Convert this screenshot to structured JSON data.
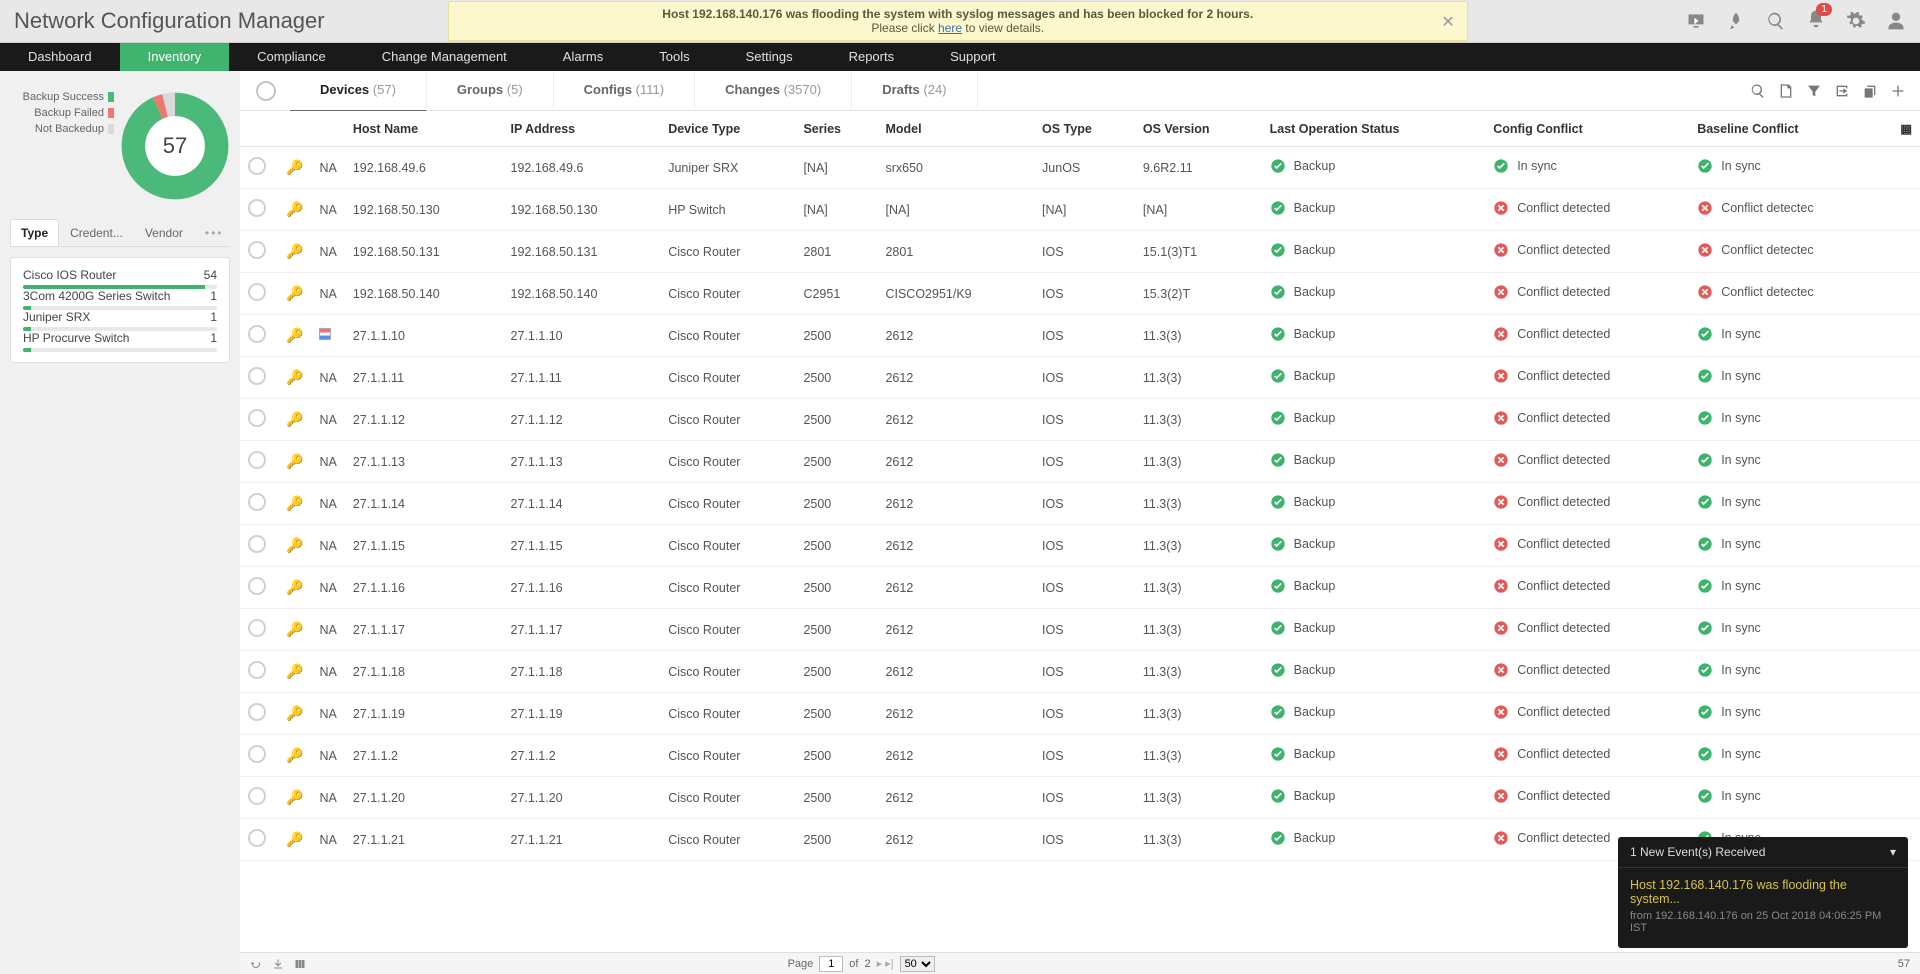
{
  "app_title": "Network Configuration Manager",
  "banner": {
    "line1_pre": "Host 192.168.140.176 was flooding the system with syslog messages and has been blocked for 2 hours.",
    "line2_pre": "Please click ",
    "link": "here",
    "line2_post": " to view details."
  },
  "topbar_badge": "1",
  "nav": [
    {
      "label": "Dashboard",
      "active": false
    },
    {
      "label": "Inventory",
      "active": true
    },
    {
      "label": "Compliance",
      "active": false
    },
    {
      "label": "Change Management",
      "active": false
    },
    {
      "label": "Alarms",
      "active": false
    },
    {
      "label": "Tools",
      "active": false
    },
    {
      "label": "Settings",
      "active": false
    },
    {
      "label": "Reports",
      "active": false
    },
    {
      "label": "Support",
      "active": false
    }
  ],
  "donut": {
    "total": "57",
    "legend": [
      {
        "label": "Backup Success",
        "color": "#4ab97a"
      },
      {
        "label": "Backup Failed",
        "color": "#e87b6e"
      },
      {
        "label": "Not Backedup",
        "color": "#d9d9d9"
      }
    ],
    "segments": [
      {
        "color": "#4ab97a",
        "frac": 0.93
      },
      {
        "color": "#e87b6e",
        "frac": 0.03
      },
      {
        "color": "#d9d9d9",
        "frac": 0.04
      }
    ]
  },
  "side_tabs": [
    {
      "label": "Type",
      "active": true
    },
    {
      "label": "Credent...",
      "active": false
    },
    {
      "label": "Vendor",
      "active": false
    }
  ],
  "types": [
    {
      "name": "Cisco IOS Router",
      "count": "54",
      "pct": 94
    },
    {
      "name": "3Com 4200G Series Switch",
      "count": "1",
      "pct": 4
    },
    {
      "name": "Juniper SRX",
      "count": "1",
      "pct": 4
    },
    {
      "name": "HP Procurve Switch",
      "count": "1",
      "pct": 4
    }
  ],
  "ctabs": [
    {
      "label": "Devices",
      "count": "(57)",
      "active": true
    },
    {
      "label": "Groups",
      "count": "(5)",
      "active": false
    },
    {
      "label": "Configs",
      "count": "(111)",
      "active": false
    },
    {
      "label": "Changes",
      "count": "(3570)",
      "active": false
    },
    {
      "label": "Drafts",
      "count": "(24)",
      "active": false
    }
  ],
  "columns": [
    "Host Name",
    "IP Address",
    "Device Type",
    "Series",
    "Model",
    "OS Type",
    "OS Version",
    "Last Operation Status",
    "Config Conflict",
    "Baseline Conflict"
  ],
  "status_labels": {
    "backup": "Backup",
    "insync": "In sync",
    "conflict": "Conflict detected",
    "conflict_trunc": "Conflict detectec"
  },
  "colors": {
    "ok": "#3fb36d",
    "bad": "#e15b5b"
  },
  "rows": [
    {
      "flag": "NA",
      "host": "192.168.49.6",
      "ip": "192.168.49.6",
      "dev": "Juniper SRX",
      "ser": "[NA]",
      "mod": "srx650",
      "os": "JunOS",
      "ver": "9.6R2.11",
      "conf": "ok",
      "base": "ok"
    },
    {
      "flag": "NA",
      "host": "192.168.50.130",
      "ip": "192.168.50.130",
      "dev": "HP Switch",
      "ser": "[NA]",
      "mod": "[NA]",
      "os": "[NA]",
      "ver": "[NA]",
      "conf": "bad",
      "base": "bad_t"
    },
    {
      "flag": "NA",
      "host": "192.168.50.131",
      "ip": "192.168.50.131",
      "dev": "Cisco Router",
      "ser": "2801",
      "mod": "2801",
      "os": "IOS",
      "ver": "15.1(3)T1",
      "conf": "bad",
      "base": "bad_t"
    },
    {
      "flag": "NA",
      "host": "192.168.50.140",
      "ip": "192.168.50.140",
      "dev": "Cisco Router",
      "ser": "C2951",
      "mod": "CISCO2951/K9",
      "os": "IOS",
      "ver": "15.3(2)T",
      "conf": "bad",
      "base": "bad_t"
    },
    {
      "flag": "IMG",
      "host": "27.1.1.10",
      "ip": "27.1.1.10",
      "dev": "Cisco Router",
      "ser": "2500",
      "mod": "2612",
      "os": "IOS",
      "ver": "11.3(3)",
      "conf": "bad",
      "base": "ok"
    },
    {
      "flag": "NA",
      "host": "27.1.1.11",
      "ip": "27.1.1.11",
      "dev": "Cisco Router",
      "ser": "2500",
      "mod": "2612",
      "os": "IOS",
      "ver": "11.3(3)",
      "conf": "bad",
      "base": "ok"
    },
    {
      "flag": "NA",
      "host": "27.1.1.12",
      "ip": "27.1.1.12",
      "dev": "Cisco Router",
      "ser": "2500",
      "mod": "2612",
      "os": "IOS",
      "ver": "11.3(3)",
      "conf": "bad",
      "base": "ok"
    },
    {
      "flag": "NA",
      "host": "27.1.1.13",
      "ip": "27.1.1.13",
      "dev": "Cisco Router",
      "ser": "2500",
      "mod": "2612",
      "os": "IOS",
      "ver": "11.3(3)",
      "conf": "bad",
      "base": "ok"
    },
    {
      "flag": "NA",
      "host": "27.1.1.14",
      "ip": "27.1.1.14",
      "dev": "Cisco Router",
      "ser": "2500",
      "mod": "2612",
      "os": "IOS",
      "ver": "11.3(3)",
      "conf": "bad",
      "base": "ok"
    },
    {
      "flag": "NA",
      "host": "27.1.1.15",
      "ip": "27.1.1.15",
      "dev": "Cisco Router",
      "ser": "2500",
      "mod": "2612",
      "os": "IOS",
      "ver": "11.3(3)",
      "conf": "bad",
      "base": "ok"
    },
    {
      "flag": "NA",
      "host": "27.1.1.16",
      "ip": "27.1.1.16",
      "dev": "Cisco Router",
      "ser": "2500",
      "mod": "2612",
      "os": "IOS",
      "ver": "11.3(3)",
      "conf": "bad",
      "base": "ok"
    },
    {
      "flag": "NA",
      "host": "27.1.1.17",
      "ip": "27.1.1.17",
      "dev": "Cisco Router",
      "ser": "2500",
      "mod": "2612",
      "os": "IOS",
      "ver": "11.3(3)",
      "conf": "bad",
      "base": "ok"
    },
    {
      "flag": "NA",
      "host": "27.1.1.18",
      "ip": "27.1.1.18",
      "dev": "Cisco Router",
      "ser": "2500",
      "mod": "2612",
      "os": "IOS",
      "ver": "11.3(3)",
      "conf": "bad",
      "base": "ok"
    },
    {
      "flag": "NA",
      "host": "27.1.1.19",
      "ip": "27.1.1.19",
      "dev": "Cisco Router",
      "ser": "2500",
      "mod": "2612",
      "os": "IOS",
      "ver": "11.3(3)",
      "conf": "bad",
      "base": "ok"
    },
    {
      "flag": "NA",
      "host": "27.1.1.2",
      "ip": "27.1.1.2",
      "dev": "Cisco Router",
      "ser": "2500",
      "mod": "2612",
      "os": "IOS",
      "ver": "11.3(3)",
      "conf": "bad",
      "base": "ok"
    },
    {
      "flag": "NA",
      "host": "27.1.1.20",
      "ip": "27.1.1.20",
      "dev": "Cisco Router",
      "ser": "2500",
      "mod": "2612",
      "os": "IOS",
      "ver": "11.3(3)",
      "conf": "bad",
      "base": "ok"
    },
    {
      "flag": "NA",
      "host": "27.1.1.21",
      "ip": "27.1.1.21",
      "dev": "Cisco Router",
      "ser": "2500",
      "mod": "2612",
      "os": "IOS",
      "ver": "11.3(3)",
      "conf": "bad",
      "base": "ok"
    }
  ],
  "pager": {
    "page": "1",
    "of_label": "of",
    "pages": "2",
    "size": "50",
    "total": "57"
  },
  "toast": {
    "head": "1 New Event(s) Received",
    "title": "Host 192.168.140.176 was flooding the system...",
    "sub": "from 192.168.140.176 on 25 Oct 2018 04:06:25 PM IST"
  }
}
